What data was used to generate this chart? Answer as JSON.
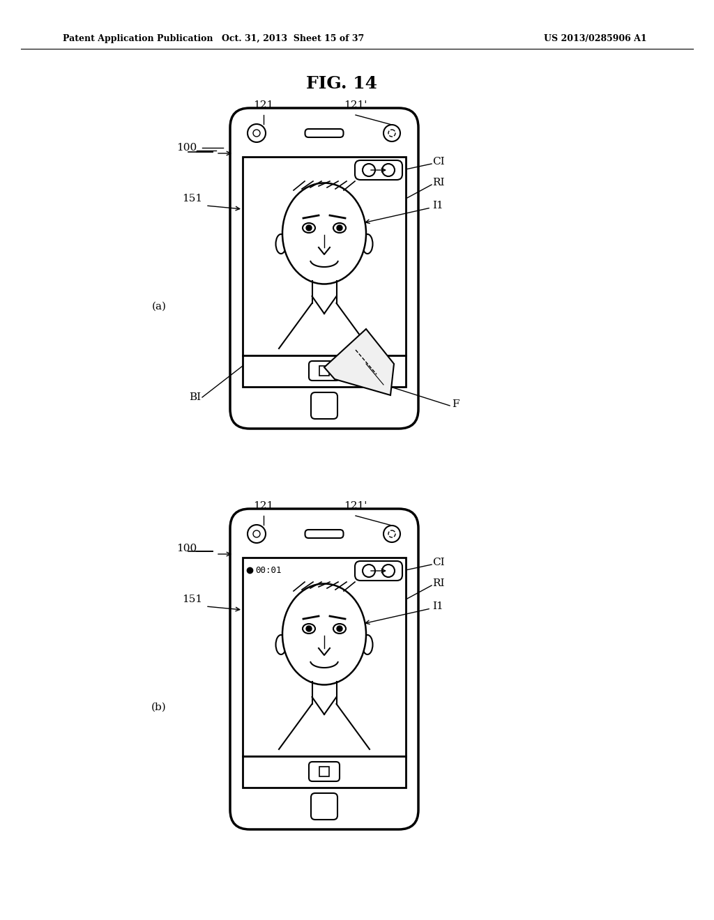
{
  "title": "FIG. 14",
  "header_left": "Patent Application Publication",
  "header_mid": "Oct. 31, 2013  Sheet 15 of 37",
  "header_right": "US 2013/0285906 A1",
  "bg_color": "#ffffff",
  "label_a": "(a)",
  "label_b": "(b)",
  "labels": {
    "fig_title": "FIG. 14",
    "100_a": "100",
    "121_a": "121",
    "121p_a": "121'",
    "151_a": "151",
    "CI_a": "CI",
    "RI_a": "RI",
    "I1_a": "I1",
    "BI_a": "BI",
    "F_a": "F",
    "100_b": "100",
    "121_b": "121",
    "121p_b": "121'",
    "151_b": "151",
    "CI_b": "CI",
    "RI_b": "RI",
    "I1_b": "I1"
  }
}
